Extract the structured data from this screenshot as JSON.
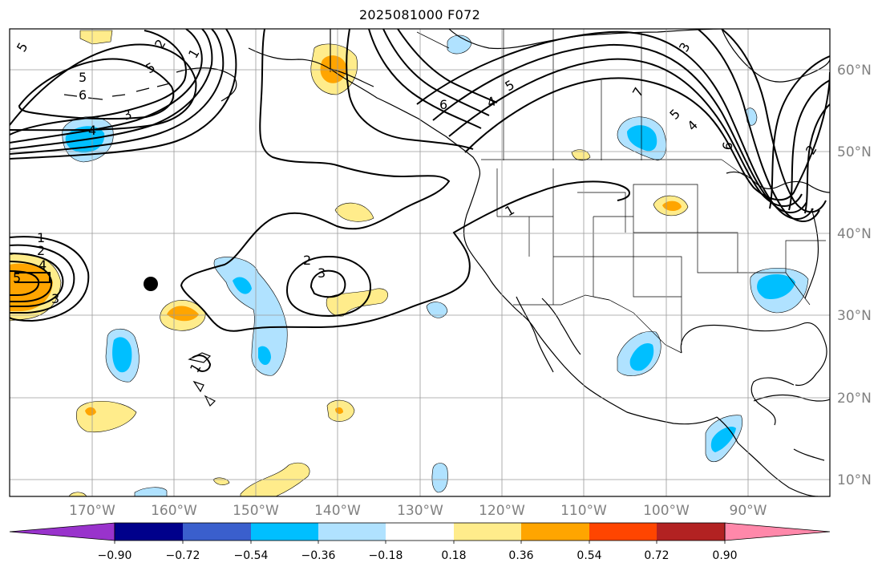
{
  "title": "2025081000 F072",
  "map": {
    "projection": "PlateCarree",
    "lon_range": [
      -180,
      -80
    ],
    "lat_range": [
      8,
      65
    ],
    "longitude_labels": [
      "170°W",
      "160°W",
      "150°W",
      "140°W",
      "130°W",
      "120°W",
      "110°W",
      "100°W",
      "90°W"
    ],
    "latitude_labels": [
      "60°N",
      "50°N",
      "40°N",
      "30°N",
      "20°N",
      "10°N"
    ],
    "gridlines": true,
    "marker": {
      "lon": -163,
      "lat": 34,
      "symbol": "black-dot"
    }
  },
  "colorbar": {
    "tick_labels": [
      "−0.90",
      "−0.72",
      "−0.54",
      "−0.36",
      "−0.18",
      "0.18",
      "0.36",
      "0.54",
      "0.72",
      "0.90"
    ],
    "colors": [
      "#9933cc",
      "#00008b",
      "#3a5fcd",
      "#00bfff",
      "#b0e2ff",
      "#ffffff",
      "#ffec8b",
      "#ffa500",
      "#ff4500",
      "#b22222",
      "#ff88aa"
    ],
    "extend": "both"
  },
  "contour_labels": [
    {
      "text": "5"
    },
    {
      "text": "2"
    },
    {
      "text": "1"
    },
    {
      "text": "5"
    },
    {
      "text": "6"
    },
    {
      "text": "5"
    },
    {
      "text": "4"
    },
    {
      "text": "3"
    },
    {
      "text": "6"
    },
    {
      "text": "4"
    },
    {
      "text": "5"
    },
    {
      "text": "3"
    },
    {
      "text": "7"
    },
    {
      "text": "6"
    },
    {
      "text": "5"
    },
    {
      "text": "4"
    },
    {
      "text": "2"
    },
    {
      "text": "1"
    },
    {
      "text": "1"
    },
    {
      "text": "2"
    },
    {
      "text": "4"
    },
    {
      "text": "5"
    },
    {
      "text": "3"
    },
    {
      "text": "2"
    },
    {
      "text": "3"
    },
    {
      "text": "1"
    }
  ]
}
